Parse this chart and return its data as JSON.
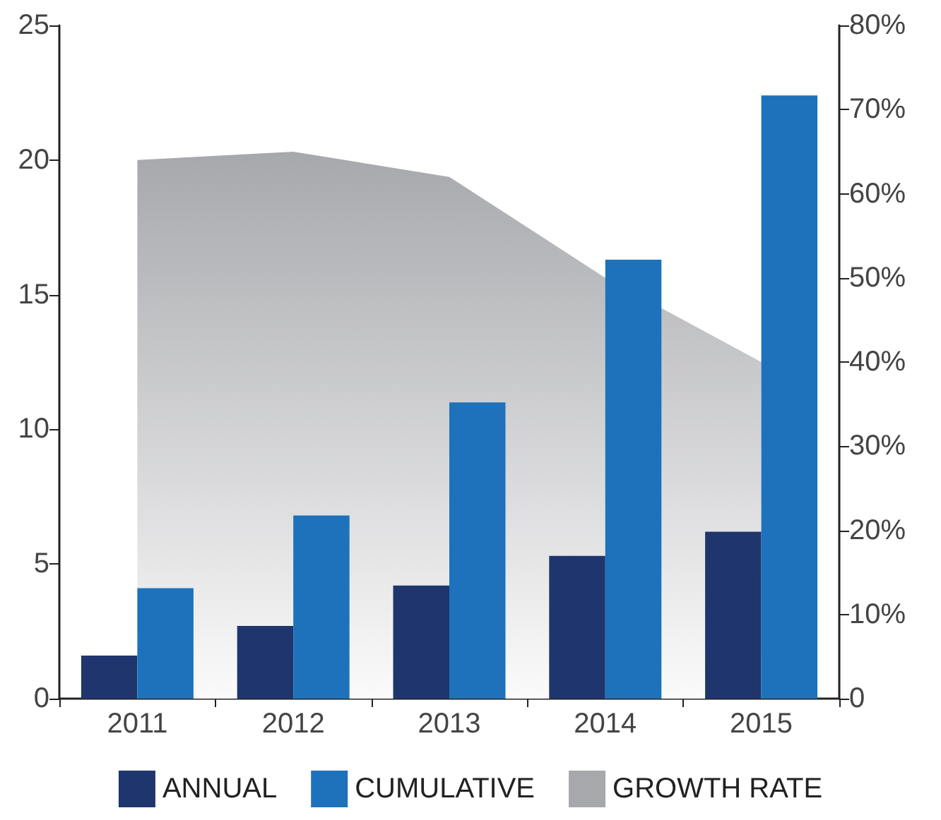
{
  "chart_data": {
    "type": "bar",
    "categories": [
      "2011",
      "2012",
      "2013",
      "2014",
      "2015"
    ],
    "series": [
      {
        "name": "GROWTH RATE",
        "type": "area",
        "axis": "y2",
        "color": "#a7a8ac",
        "values": [
          64,
          65,
          62,
          50,
          40
        ]
      },
      {
        "name": "ANNUAL",
        "color": "#1f356e",
        "values": [
          1.6,
          2.7,
          4.2,
          5.3,
          6.2
        ]
      },
      {
        "name": "CUMULATIVE",
        "color": "#1d72bb",
        "values": [
          4.1,
          6.8,
          11.0,
          16.3,
          22.4
        ]
      }
    ],
    "ylim": [
      0,
      25
    ],
    "yticks": [
      0,
      5,
      10,
      15,
      20,
      25
    ],
    "y2lim": [
      0,
      80
    ],
    "y2ticks": [
      0,
      {
        "value": 10,
        "label": "10%"
      },
      {
        "value": 20,
        "label": "20%"
      },
      {
        "value": 30,
        "label": "30%"
      },
      {
        "value": 40,
        "label": "40%"
      },
      {
        "value": 50,
        "label": "50%"
      },
      {
        "value": 60,
        "label": "60%"
      },
      {
        "value": 70,
        "label": "70%"
      },
      {
        "value": 80,
        "label": "80%"
      }
    ],
    "grid": false,
    "legend": "bottom"
  }
}
